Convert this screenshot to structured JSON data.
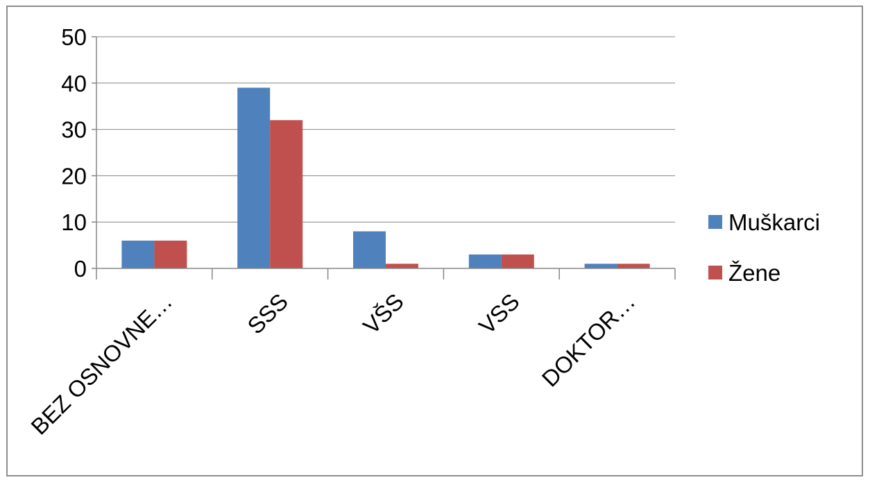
{
  "chart_data": {
    "type": "bar",
    "categories": [
      "BEZ OSNOVNE…",
      "SSS",
      "VŠS",
      "VSS",
      "DOKTOR…"
    ],
    "series": [
      {
        "name": "Muškarci",
        "color": "#4F81BD",
        "values": [
          6,
          39,
          8,
          3,
          1
        ]
      },
      {
        "name": "Žene",
        "color": "#C0504D",
        "values": [
          6,
          32,
          1,
          3,
          1
        ]
      }
    ],
    "ylim": [
      0,
      50
    ],
    "yticks": [
      "0",
      "10",
      "20",
      "30",
      "40",
      "50"
    ],
    "grid": true,
    "legend_position": "right"
  }
}
